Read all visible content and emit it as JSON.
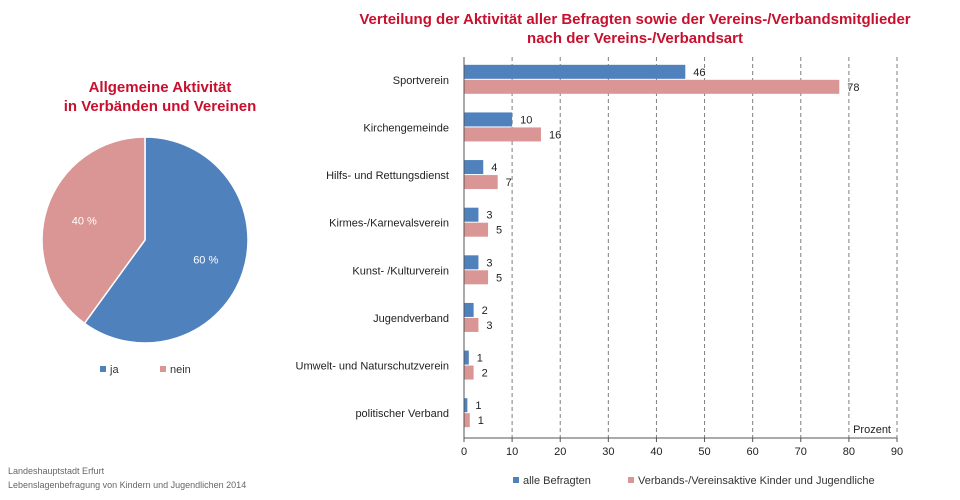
{
  "colors": {
    "blue": "#4f81bd",
    "pink": "#d99694",
    "title": "#c8102e"
  },
  "source": {
    "line1": "Landeshauptstadt Erfurt",
    "line2": "Lebenslagenbefragung von Kindern und Jugendlichen 2014"
  },
  "chart_data": [
    {
      "type": "pie",
      "title_line1": "Allgemeine Aktivität",
      "title_line2": "in Verbänden und Vereinen",
      "slices": [
        {
          "label": "ja",
          "value": 60,
          "display": "60 %",
          "color": "#4f81bd"
        },
        {
          "label": "nein",
          "value": 40,
          "display": "40 %",
          "color": "#d99694"
        }
      ],
      "legend_position": "bottom"
    },
    {
      "type": "bar",
      "orientation": "horizontal",
      "title_line1": "Verteilung der Aktivität aller Befragten sowie der Vereins-/Verbandsmitglieder",
      "title_line2": "nach der Vereins-/Verbandsart",
      "categories": [
        "Sportverein",
        "Kirchengemeinde",
        "Hilfs- und Rettungsdienst",
        "Kirmes-/Karnevalsverein",
        "Kunst- /Kulturverein",
        "Jugendverband",
        "Umwelt- und Naturschutzverein",
        "politischer Verband"
      ],
      "series": [
        {
          "name": "alle Befragten",
          "color": "#4f81bd",
          "values": [
            46,
            10,
            4,
            3,
            3,
            2,
            1,
            1
          ]
        },
        {
          "name": "Verbands-/Vereinsaktive Kinder und Jugendliche",
          "color": "#d99694",
          "values": [
            78,
            16,
            7,
            5,
            5,
            3,
            2,
            1
          ]
        }
      ],
      "bar_values": [
        [
          46,
          10,
          4,
          3,
          3,
          2,
          1,
          0.7
        ],
        [
          78,
          16,
          7,
          5,
          5,
          3,
          2,
          1.2
        ]
      ],
      "xlabel": "Prozent",
      "xlim": [
        0,
        90
      ],
      "xticks": [
        0,
        10,
        20,
        30,
        40,
        50,
        60,
        70,
        80,
        90
      ],
      "grid": "vertical dashed",
      "legend_position": "bottom"
    }
  ]
}
